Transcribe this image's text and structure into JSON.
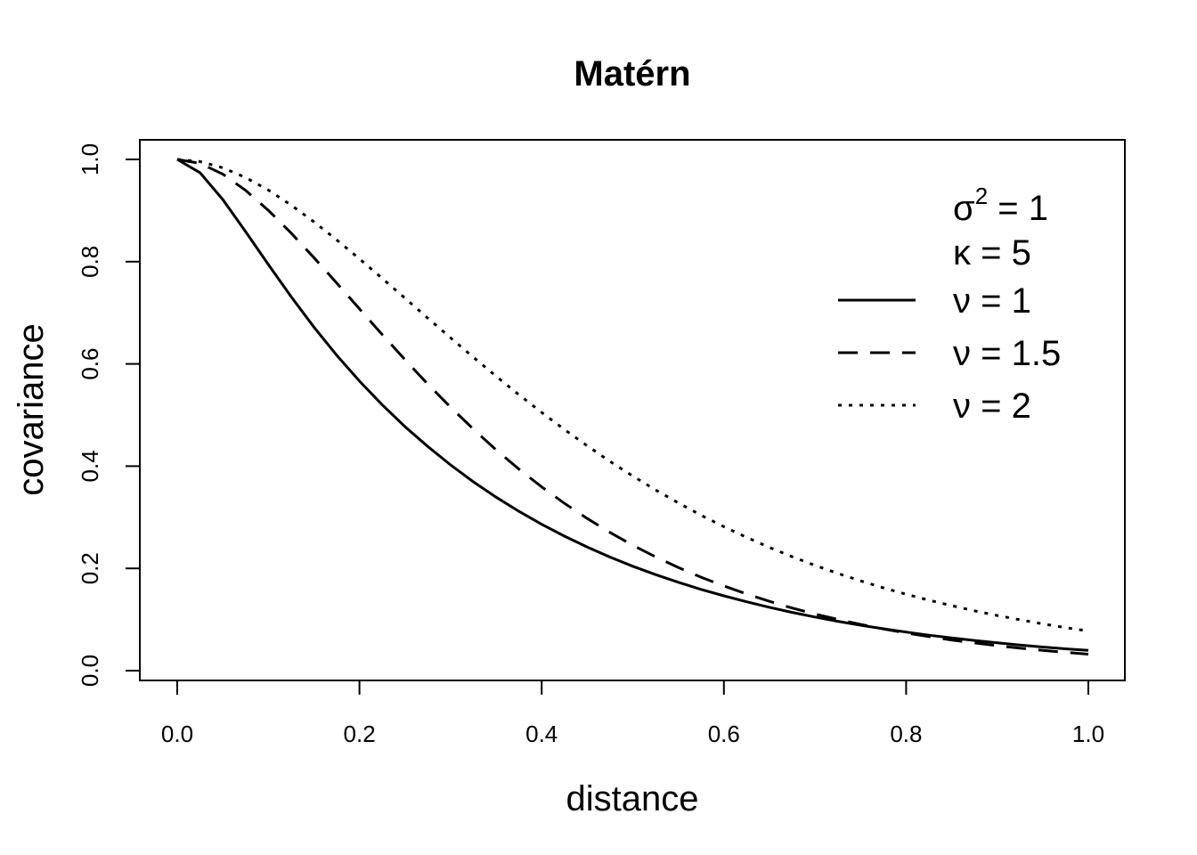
{
  "chart_data": {
    "type": "line",
    "title": "Matérn",
    "xlabel": "distance",
    "ylabel": "covariance",
    "xlim": [
      0,
      1
    ],
    "ylim": [
      0,
      1
    ],
    "xticks": [
      "0.0",
      "0.2",
      "0.4",
      "0.6",
      "0.8",
      "1.0"
    ],
    "yticks": [
      "0.0",
      "0.2",
      "0.4",
      "0.6",
      "0.8",
      "1.0"
    ],
    "grid": false,
    "legend_position": "top-right",
    "legend_params": {
      "sigma_sym": "σ",
      "sigma_sup": "2",
      "sigma_rest": " = 1",
      "kappa_text": "κ = 5"
    },
    "x": [
      0,
      0.025,
      0.05,
      0.075,
      0.1,
      0.125,
      0.15,
      0.175,
      0.2,
      0.225,
      0.25,
      0.275,
      0.3,
      0.325,
      0.35,
      0.375,
      0.4,
      0.425,
      0.45,
      0.475,
      0.5,
      0.525,
      0.55,
      0.575,
      0.6,
      0.625,
      0.65,
      0.675,
      0.7,
      0.725,
      0.75,
      0.775,
      0.8,
      0.825,
      0.85,
      0.875,
      0.9,
      0.925,
      0.95,
      0.975,
      1.0
    ],
    "series": [
      {
        "name": "ν = 1",
        "dash": "solid",
        "values": [
          1.0,
          0.9741,
          0.9215,
          0.8589,
          0.7944,
          0.7315,
          0.6722,
          0.6171,
          0.5663,
          0.5199,
          0.4772,
          0.4385,
          0.4024,
          0.3693,
          0.3393,
          0.3117,
          0.2862,
          0.263,
          0.2418,
          0.2222,
          0.2042,
          0.1878,
          0.1728,
          0.1589,
          0.1463,
          0.1346,
          0.1239,
          0.114,
          0.1049,
          0.0966,
          0.0889,
          0.0819,
          0.0754,
          0.0694,
          0.064,
          0.059,
          0.0543,
          0.0501,
          0.0462,
          0.0426,
          0.0397
        ]
      },
      {
        "name": "ν = 1.5",
        "dash": "dashed",
        "values": [
          1.0,
          0.9924,
          0.9712,
          0.9396,
          0.9004,
          0.8559,
          0.808,
          0.7583,
          0.7076,
          0.6573,
          0.6082,
          0.5605,
          0.5153,
          0.4724,
          0.4319,
          0.3942,
          0.3594,
          0.3272,
          0.2975,
          0.2703,
          0.2453,
          0.2225,
          0.2017,
          0.1828,
          0.1656,
          0.1498,
          0.1355,
          0.1225,
          0.1107,
          0.1001,
          0.0904,
          0.0817,
          0.0737,
          0.0665,
          0.06,
          0.0541,
          0.0488,
          0.044,
          0.0397,
          0.0358,
          0.0323
        ]
      },
      {
        "name": "ν = 2",
        "dash": "dotted",
        "values": [
          1.0,
          0.9958,
          0.9837,
          0.9647,
          0.94,
          0.9107,
          0.878,
          0.8427,
          0.8056,
          0.7673,
          0.7285,
          0.6896,
          0.651,
          0.613,
          0.5759,
          0.5398,
          0.505,
          0.4716,
          0.4397,
          0.4093,
          0.3806,
          0.3535,
          0.328,
          0.304,
          0.2815,
          0.2606,
          0.241,
          0.2228,
          0.2059,
          0.1902,
          0.1756,
          0.162,
          0.1495,
          0.1378,
          0.1271,
          0.1171,
          0.1079,
          0.0994,
          0.0915,
          0.0842,
          0.0775
        ]
      }
    ]
  }
}
